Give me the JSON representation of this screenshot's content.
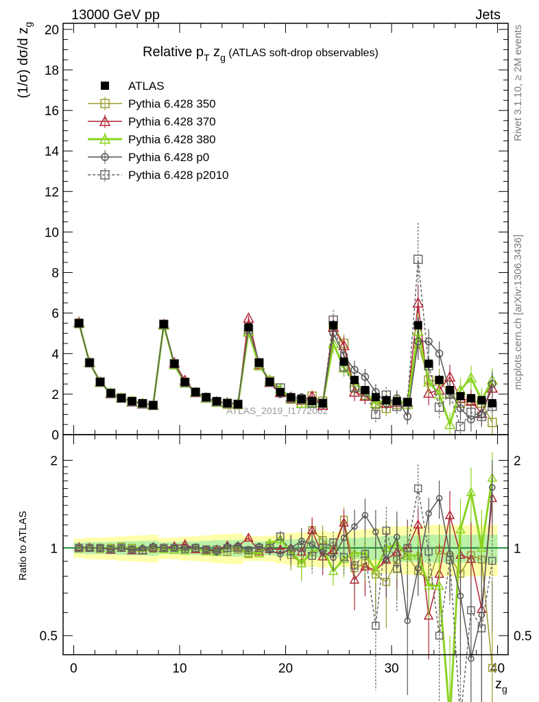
{
  "header": {
    "left": "13000 GeV pp",
    "right": "Jets"
  },
  "side_labels": {
    "rivet": "Rivet 3.1.10, ≥ 2M events",
    "mcplots": "mcplots.cern.ch [arXiv:1306.3436]"
  },
  "watermark": "ATLAS_2019_I1772062",
  "chart_data": [
    {
      "panel": "main",
      "type": "line",
      "title": "Relative p_T z_g (ATLAS soft-drop observables)",
      "title_parts": {
        "main": "Relative p",
        "sub": "T",
        "mid": " z",
        "sub2": "g",
        "tail": " (ATLAS soft-drop observables)"
      },
      "ylabel": "(1/σ) dσ/d z_g",
      "ylabel_parts": {
        "main": "(1/σ) dσ/d z",
        "sub": "g"
      },
      "xlabel": "z_g",
      "xlim": [
        -1,
        41
      ],
      "ylim": [
        0,
        20.3
      ],
      "yticks": [
        0,
        2,
        4,
        6,
        8,
        10,
        12,
        14,
        16,
        18,
        20
      ],
      "legend_position": "top-left",
      "x": [
        0.5,
        1.5,
        2.5,
        3.5,
        4.5,
        5.5,
        6.5,
        7.5,
        8.5,
        9.5,
        10.5,
        11.5,
        12.5,
        13.5,
        14.5,
        15.5,
        16.5,
        17.5,
        18.5,
        19.5,
        20.5,
        21.5,
        22.5,
        23.5,
        24.5,
        25.5,
        26.5,
        27.5,
        28.5,
        29.5,
        30.5,
        31.5,
        32.5,
        33.5,
        34.5,
        35.5,
        36.5,
        37.5,
        38.5,
        39.5
      ],
      "series": [
        {
          "name": "ATLAS",
          "color": "#000000",
          "marker": "filled-square",
          "values": [
            5.5,
            3.55,
            2.6,
            2.05,
            1.8,
            1.65,
            1.55,
            1.45,
            5.45,
            3.5,
            2.6,
            2.1,
            1.85,
            1.65,
            1.55,
            1.5,
            5.3,
            3.55,
            2.6,
            2.1,
            1.85,
            1.75,
            1.65,
            1.55,
            5.4,
            3.6,
            2.7,
            2.2,
            1.85,
            1.7,
            1.65,
            1.6,
            5.4,
            3.5,
            2.7,
            2.2,
            1.9,
            1.8,
            1.7,
            1.55
          ],
          "errors": [
            0.1,
            0.08,
            0.06,
            0.05,
            0.05,
            0.05,
            0.05,
            0.05,
            0.12,
            0.08,
            0.07,
            0.06,
            0.06,
            0.06,
            0.06,
            0.06,
            0.15,
            0.1,
            0.08,
            0.08,
            0.08,
            0.08,
            0.08,
            0.08,
            0.25,
            0.18,
            0.15,
            0.13,
            0.12,
            0.12,
            0.12,
            0.12,
            0.4,
            0.3,
            0.25,
            0.22,
            0.2,
            0.2,
            0.2,
            0.2
          ]
        },
        {
          "name": "Pythia 6.428 350",
          "color": "#9a9a2e",
          "marker": "open-square",
          "values": [
            5.48,
            3.55,
            2.58,
            2.05,
            1.82,
            1.65,
            1.52,
            1.44,
            5.43,
            3.45,
            2.55,
            2.08,
            1.82,
            1.6,
            1.5,
            1.48,
            5.05,
            3.5,
            2.65,
            2.3,
            1.75,
            1.55,
            1.9,
            1.65,
            5.35,
            4.5,
            2.3,
            1.95,
            1.5,
            1.3,
            1.5,
            1.5,
            4.5,
            2.7,
            2.65,
            2.05,
            1.55,
            1.7,
            1.55,
            0.6
          ],
          "errors": [
            0.05,
            0.04,
            0.04,
            0.04,
            0.04,
            0.04,
            0.04,
            0.04,
            0.06,
            0.05,
            0.05,
            0.05,
            0.05,
            0.05,
            0.05,
            0.05,
            0.1,
            0.1,
            0.1,
            0.1,
            0.2,
            0.2,
            0.2,
            0.2,
            0.5,
            0.45,
            0.45,
            0.4,
            0.4,
            0.4,
            0.4,
            0.4,
            0.8,
            0.6,
            0.6,
            0.6,
            0.6,
            0.6,
            0.6,
            0.6
          ]
        },
        {
          "name": "Pythia 6.428 370",
          "color": "#b22234",
          "marker": "open-triangle",
          "values": [
            5.55,
            3.57,
            2.6,
            2.02,
            1.8,
            1.62,
            1.52,
            1.46,
            5.45,
            3.55,
            2.68,
            2.08,
            1.82,
            1.63,
            1.58,
            1.52,
            5.75,
            3.45,
            2.58,
            2.08,
            1.85,
            1.7,
            1.9,
            1.45,
            5.3,
            4.4,
            2.1,
            1.9,
            1.55,
            1.55,
            1.6,
            1.6,
            6.5,
            2.05,
            2.2,
            2.85,
            1.8,
            1.65,
            1.05,
            2.3
          ],
          "errors": [
            0.05,
            0.04,
            0.04,
            0.04,
            0.04,
            0.04,
            0.04,
            0.04,
            0.06,
            0.05,
            0.05,
            0.05,
            0.05,
            0.05,
            0.05,
            0.05,
            0.12,
            0.1,
            0.1,
            0.1,
            0.2,
            0.2,
            0.2,
            0.2,
            0.5,
            0.45,
            0.45,
            0.4,
            0.4,
            0.4,
            0.4,
            0.4,
            0.9,
            0.6,
            0.6,
            0.6,
            0.6,
            0.6,
            0.6,
            0.6
          ]
        },
        {
          "name": "Pythia 6.428 380",
          "color": "#8bd321",
          "marker": "open-triangle",
          "values": [
            5.5,
            3.55,
            2.6,
            2.05,
            1.8,
            1.65,
            1.55,
            1.45,
            5.4,
            3.45,
            2.55,
            2.1,
            1.8,
            1.6,
            1.55,
            1.5,
            5.1,
            3.4,
            2.7,
            2.25,
            1.8,
            1.55,
            1.6,
            1.55,
            4.5,
            3.3,
            2.6,
            2.1,
            1.55,
            1.7,
            1.7,
            1.5,
            5.1,
            2.6,
            2.0,
            0.5,
            2.2,
            2.8,
            1.7,
            2.7
          ],
          "errors": [
            0.05,
            0.04,
            0.04,
            0.04,
            0.04,
            0.04,
            0.04,
            0.04,
            0.06,
            0.05,
            0.05,
            0.05,
            0.05,
            0.05,
            0.05,
            0.05,
            0.1,
            0.1,
            0.1,
            0.1,
            0.2,
            0.2,
            0.2,
            0.2,
            0.5,
            0.45,
            0.45,
            0.4,
            0.4,
            0.4,
            0.4,
            0.4,
            0.9,
            0.6,
            0.6,
            0.6,
            0.6,
            0.6,
            0.6,
            0.6
          ]
        },
        {
          "name": "Pythia 6.428 p0",
          "color": "#555555",
          "marker": "open-circle",
          "values": [
            5.5,
            3.55,
            2.6,
            2.03,
            1.8,
            1.63,
            1.55,
            1.47,
            5.45,
            3.5,
            2.6,
            2.12,
            1.83,
            1.6,
            1.57,
            1.53,
            5.25,
            3.6,
            2.55,
            2.0,
            1.85,
            1.85,
            1.7,
            1.5,
            5.0,
            3.9,
            3.2,
            2.85,
            2.1,
            1.55,
            1.8,
            0.9,
            4.6,
            4.6,
            4.0,
            2.1,
            1.3,
            0.75,
            1.0,
            2.5
          ],
          "errors": [
            0.05,
            0.04,
            0.04,
            0.04,
            0.04,
            0.04,
            0.04,
            0.04,
            0.06,
            0.05,
            0.05,
            0.05,
            0.05,
            0.05,
            0.05,
            0.05,
            0.1,
            0.1,
            0.1,
            0.1,
            0.2,
            0.2,
            0.2,
            0.2,
            0.5,
            0.45,
            0.45,
            0.4,
            0.4,
            0.4,
            0.4,
            0.4,
            0.9,
            0.6,
            0.6,
            0.6,
            0.6,
            0.6,
            0.6,
            0.6
          ]
        },
        {
          "name": "Pythia 6.428 p2010",
          "color": "#666666",
          "marker": "open-square",
          "dashed": true,
          "values": [
            5.5,
            3.55,
            2.6,
            2.03,
            1.8,
            1.63,
            1.52,
            1.45,
            5.45,
            3.5,
            2.58,
            2.1,
            1.83,
            1.63,
            1.55,
            1.5,
            5.2,
            3.55,
            2.6,
            2.3,
            1.8,
            1.75,
            1.55,
            1.55,
            5.65,
            3.35,
            2.35,
            2.1,
            1.0,
            1.95,
            1.4,
            1.6,
            8.65,
            3.4,
            1.35,
            2.0,
            0.4,
            1.1,
            0.9,
            1.4
          ],
          "errors": [
            0.05,
            0.04,
            0.04,
            0.04,
            0.04,
            0.04,
            0.04,
            0.04,
            0.06,
            0.05,
            0.05,
            0.05,
            0.05,
            0.05,
            0.05,
            0.05,
            0.12,
            0.1,
            0.1,
            0.1,
            0.2,
            0.2,
            0.2,
            0.2,
            0.5,
            0.45,
            0.45,
            0.4,
            0.4,
            0.4,
            0.4,
            0.4,
            1.8,
            0.7,
            0.6,
            0.6,
            0.6,
            0.6,
            0.6,
            0.6
          ]
        }
      ]
    },
    {
      "panel": "ratio",
      "type": "line",
      "ylabel": "Ratio to ATLAS",
      "ylog": true,
      "ylim": [
        0.43,
        2.45
      ],
      "yticks": [
        0.5,
        1,
        2
      ],
      "xticks": [
        0,
        10,
        20,
        30,
        40
      ]
    }
  ]
}
